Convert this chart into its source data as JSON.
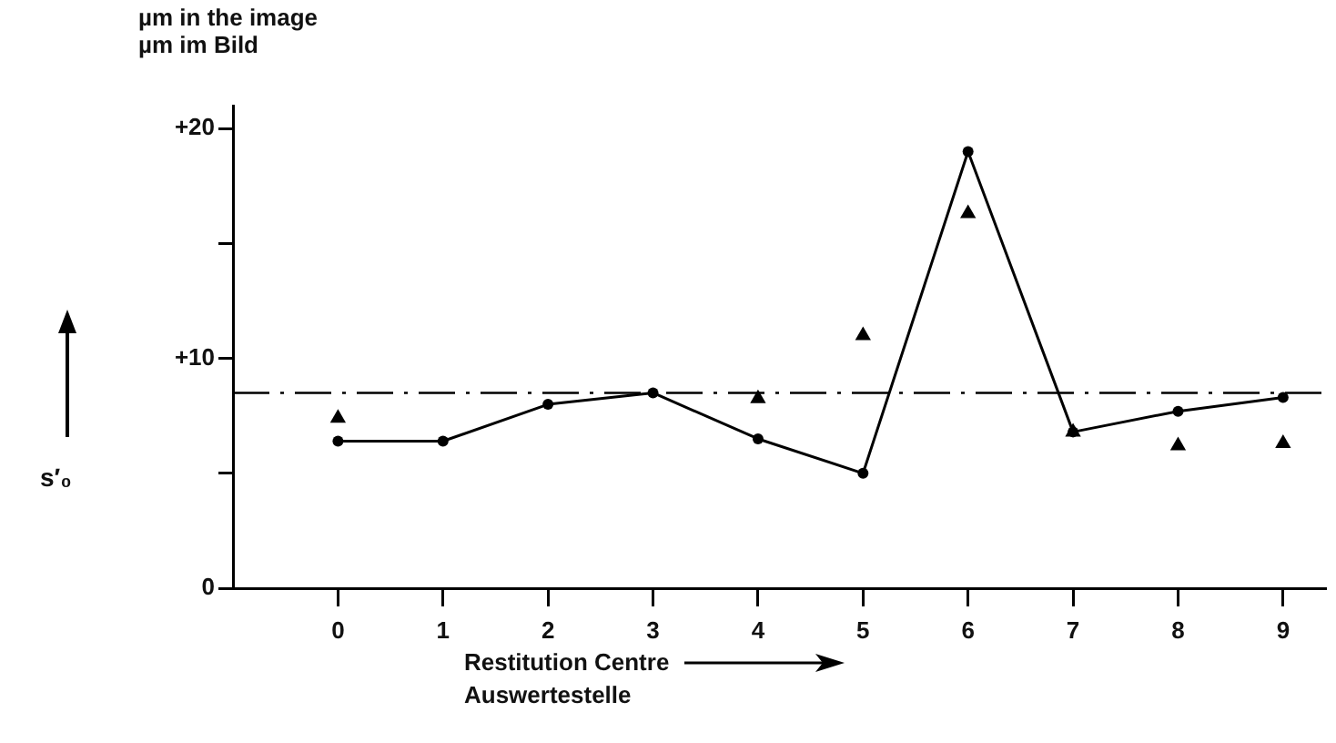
{
  "chart_data": {
    "type": "line",
    "title": "µm in the image",
    "subtitle": "µm im Bild",
    "ylabel": "s′₀",
    "xlabel": "Restitution Centre",
    "annotations": [
      "Auswertestelle"
    ],
    "x": [
      0,
      1,
      2,
      3,
      4,
      5,
      6,
      7,
      8,
      9
    ],
    "xlim": [
      -1,
      9.4
    ],
    "xticks": [
      0,
      1,
      2,
      3,
      4,
      5,
      6,
      7,
      8,
      9
    ],
    "ylim": [
      0,
      21
    ],
    "yticks": [
      0,
      {
        "value": 5,
        "label": null
      },
      {
        "value": 10,
        "label": "+10"
      },
      {
        "value": 15,
        "label": null
      },
      {
        "value": 20,
        "label": "+20"
      }
    ],
    "grid": false,
    "legend": false,
    "series": [
      {
        "type": "line",
        "marker": "circle",
        "color": "#000000",
        "values": [
          6.4,
          6.4,
          8.0,
          8.5,
          6.5,
          5.0,
          19.0,
          6.8,
          7.7,
          8.3
        ]
      },
      {
        "type": "scatter",
        "marker": "triangle",
        "color": "#000000",
        "values": [
          7.4,
          null,
          null,
          null,
          8.25,
          11.0,
          16.3,
          6.8,
          6.2,
          6.3
        ]
      }
    ],
    "ref_lines": [
      {
        "axis": "y",
        "value": 8.5,
        "color": "#000000",
        "line_style": "dashed"
      }
    ]
  }
}
